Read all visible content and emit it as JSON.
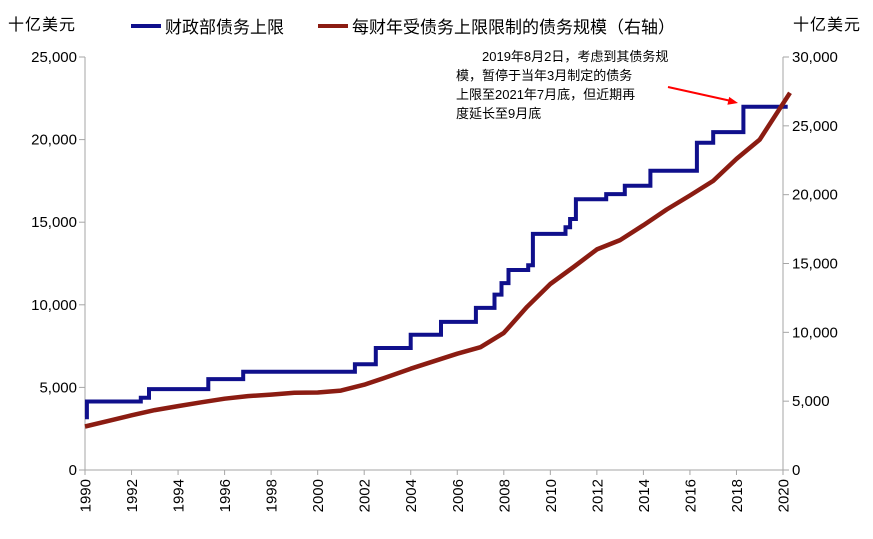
{
  "chart_data": {
    "type": "line",
    "title": "",
    "grid": false,
    "legend_position": "top",
    "x_axis": {
      "min": 1990,
      "max": 2020,
      "tick_interval": 2,
      "tick_labels": [
        "1990",
        "1992",
        "1994",
        "1996",
        "1998",
        "2000",
        "2002",
        "2004",
        "2006",
        "2008",
        "2010",
        "2012",
        "2014",
        "2016",
        "2018",
        "2020"
      ]
    },
    "left_axis": {
      "unit": "十亿美元",
      "min": 0,
      "max": 25000,
      "tick_interval": 5000,
      "tick_labels": [
        "0",
        "5,000",
        "10,000",
        "15,000",
        "20,000",
        "25,000"
      ]
    },
    "right_axis": {
      "unit": "十亿美元",
      "min": 0,
      "max": 30000,
      "tick_interval": 5000,
      "tick_labels": [
        "0",
        "5,000",
        "10,000",
        "15,000",
        "20,000",
        "25,000",
        "30,000"
      ]
    },
    "axis_color": "#a6a6a6",
    "series": [
      {
        "name": "财政部债务上限",
        "axis": "left",
        "color": "#10108c",
        "line_style": "step",
        "stroke_width": 4,
        "points": [
          [
            1990.0,
            3195
          ],
          [
            1990.08,
            4145
          ],
          [
            1992.4,
            4370
          ],
          [
            1992.75,
            4900
          ],
          [
            1995.3,
            5500
          ],
          [
            1996.8,
            5950
          ],
          [
            2001.6,
            6400
          ],
          [
            2002.5,
            7384
          ],
          [
            2004.0,
            8184
          ],
          [
            2005.3,
            8965
          ],
          [
            2006.8,
            9815
          ],
          [
            2007.6,
            10615
          ],
          [
            2007.9,
            11315
          ],
          [
            2008.2,
            12104
          ],
          [
            2009.05,
            12394
          ],
          [
            2009.25,
            14294
          ],
          [
            2010.65,
            14694
          ],
          [
            2010.85,
            15194
          ],
          [
            2011.1,
            16394
          ],
          [
            2012.4,
            16699
          ],
          [
            2013.2,
            17212
          ],
          [
            2014.3,
            18113
          ],
          [
            2016.3,
            19809
          ],
          [
            2017.0,
            20456
          ],
          [
            2018.3,
            21988
          ],
          [
            2020.2,
            21988
          ]
        ]
      },
      {
        "name": "每财年受债务上限限制的债务规模（右轴）",
        "axis": "right",
        "color": "#8b1c12",
        "line_style": "line",
        "stroke_width": 4.5,
        "points": [
          [
            1990,
            3161
          ],
          [
            1991,
            3569
          ],
          [
            1992,
            3973
          ],
          [
            1993,
            4351
          ],
          [
            1994,
            4643
          ],
          [
            1995,
            4921
          ],
          [
            1996,
            5181
          ],
          [
            1997,
            5369
          ],
          [
            1998,
            5478
          ],
          [
            1999,
            5606
          ],
          [
            2000,
            5629
          ],
          [
            2001,
            5770
          ],
          [
            2002,
            6198
          ],
          [
            2003,
            6760
          ],
          [
            2004,
            7355
          ],
          [
            2005,
            7906
          ],
          [
            2006,
            8451
          ],
          [
            2007,
            8921
          ],
          [
            2008,
            9960
          ],
          [
            2009,
            11853
          ],
          [
            2010,
            13511
          ],
          [
            2011,
            14747
          ],
          [
            2012,
            16027
          ],
          [
            2013,
            16700
          ],
          [
            2014,
            17781
          ],
          [
            2015,
            18922
          ],
          [
            2016,
            19939
          ],
          [
            2017,
            21000
          ],
          [
            2018,
            22600
          ],
          [
            2019,
            24000
          ],
          [
            2020.3,
            27400
          ]
        ]
      }
    ],
    "annotation": {
      "lines": [
        "2019年8月2日，考虑到其债务规",
        "模，暂停于当年3月制定的债务",
        "上限至2021年7月底，但近期再",
        "度延长至9月底"
      ],
      "arrow_color": "#ff0000"
    }
  }
}
